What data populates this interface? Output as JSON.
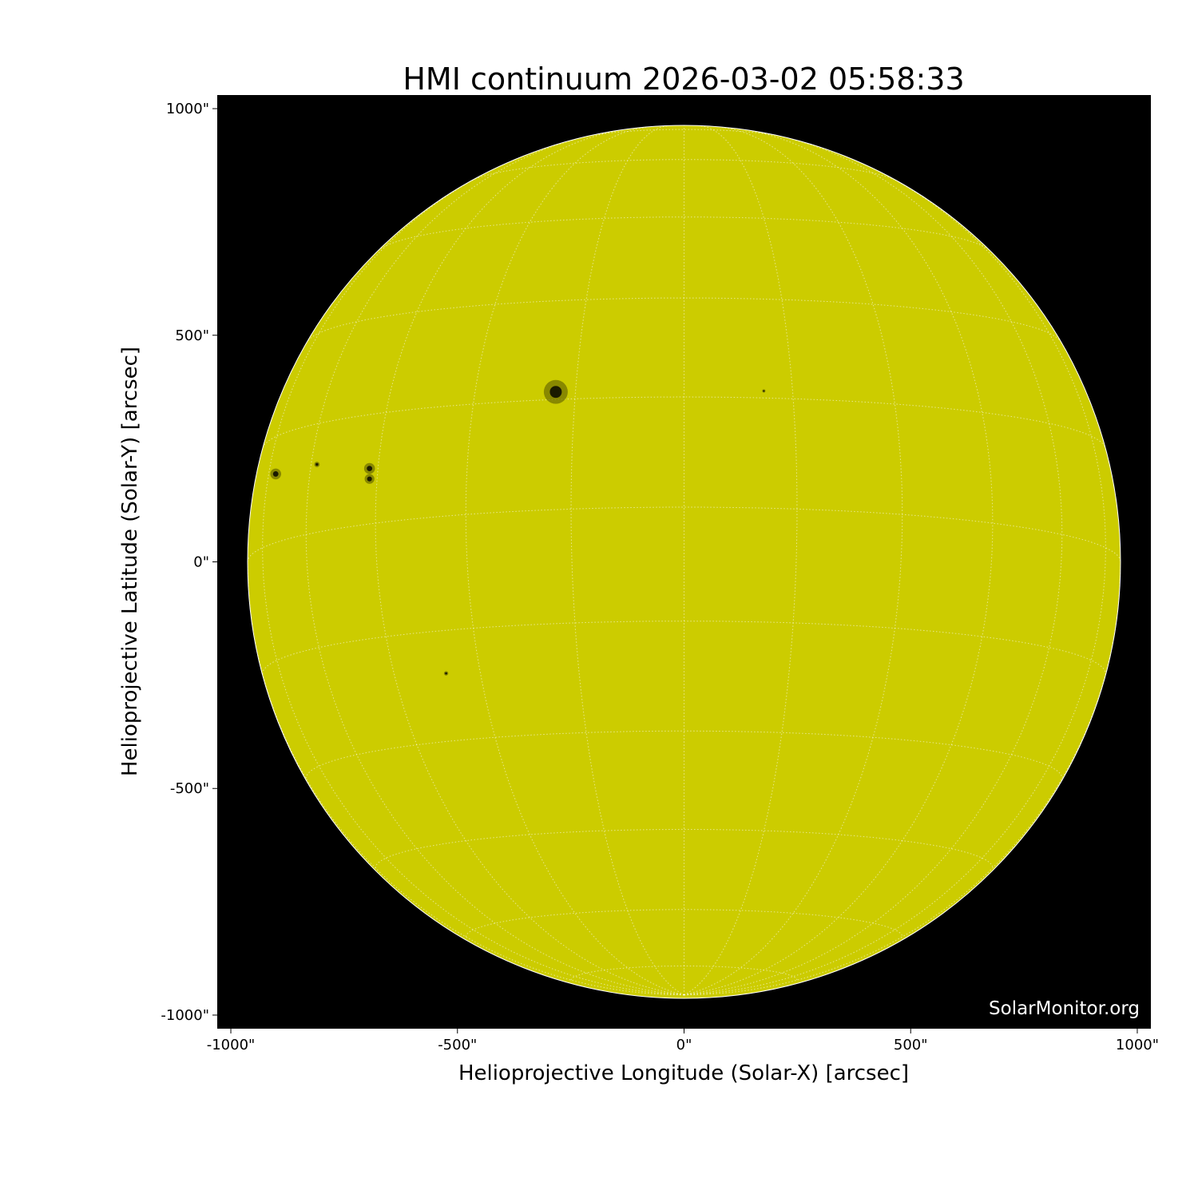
{
  "chart_data": {
    "type": "image",
    "title": "HMI continuum 2026-03-02 05:58:33",
    "xlabel": "Helioprojective Longitude (Solar-X) [arcsec]",
    "ylabel": "Helioprojective Latitude (Solar-Y) [arcsec]",
    "xlim": [
      -1030,
      1030
    ],
    "ylim": [
      -1030,
      1030
    ],
    "xticks": [
      -1000,
      -500,
      0,
      500,
      1000
    ],
    "yticks": [
      -1000,
      -500,
      0,
      500,
      1000
    ],
    "xtick_labels": [
      "-1000\"",
      "-500\"",
      "0\"",
      "500\"",
      "1000\""
    ],
    "ytick_labels": [
      "-1000\"",
      "-500\"",
      "0\"",
      "500\"",
      "1000\""
    ],
    "solar_radius_arcsec": 963,
    "grid": true,
    "grid_spacing_deg": 15,
    "colors": {
      "disk": "#cccc00",
      "background": "#000000",
      "grid": "#ffffff",
      "spot": "#1a1a00"
    },
    "sunspots": [
      {
        "x": -283,
        "y": 375,
        "size": 22
      },
      {
        "x": -901,
        "y": 194,
        "size": 10
      },
      {
        "x": -694,
        "y": 206,
        "size": 10
      },
      {
        "x": -694,
        "y": 183,
        "size": 9
      },
      {
        "x": -810,
        "y": 215,
        "size": 5
      },
      {
        "x": 176,
        "y": 377,
        "size": 3
      },
      {
        "x": -525,
        "y": -246,
        "size": 4
      }
    ],
    "watermark": "SolarMonitor.org"
  }
}
